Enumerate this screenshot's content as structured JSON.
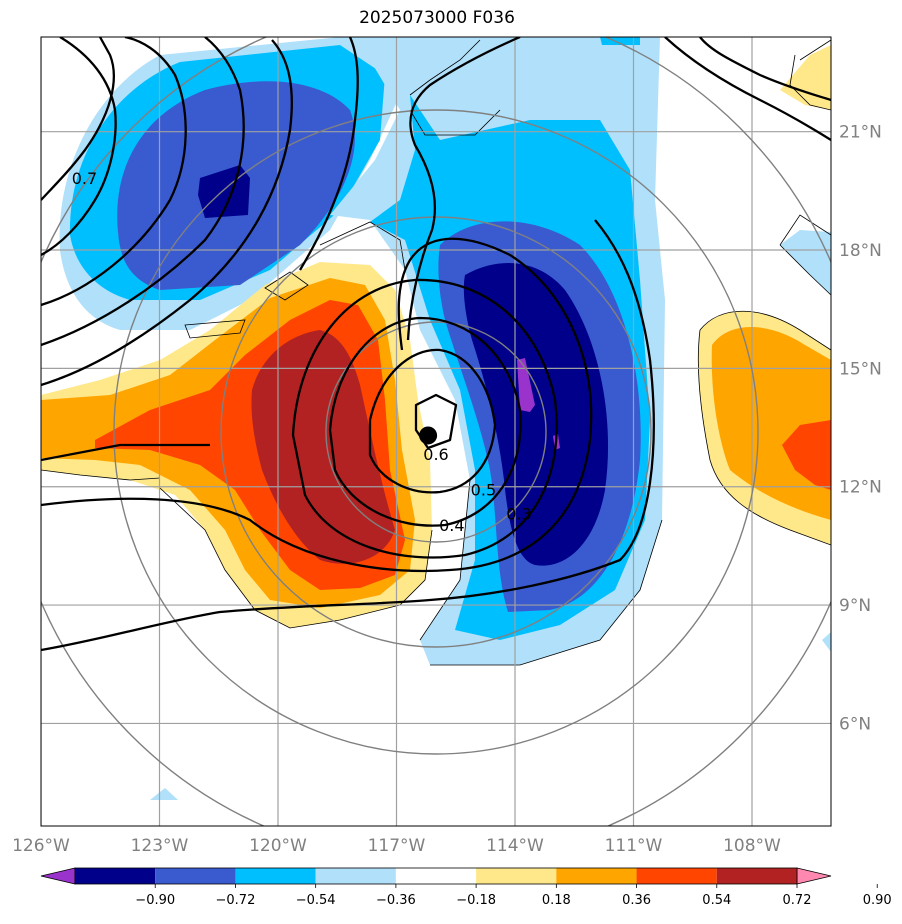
{
  "title": "2025073000 F036",
  "map": {
    "lon_range": [
      -126,
      -106
    ],
    "lat_range": [
      3.4,
      23.4
    ],
    "lon_ticks": [
      -126,
      -123,
      -120,
      -117,
      -114,
      -111,
      -108
    ],
    "lon_tick_labels": [
      "126°W",
      "123°W",
      "120°W",
      "117°W",
      "114°W",
      "111°W",
      "108°W"
    ],
    "lat_ticks": [
      6,
      9,
      12,
      15,
      18,
      21
    ],
    "lat_tick_labels": [
      "6°N",
      "9°N",
      "12°N",
      "15°N",
      "18°N",
      "21°N"
    ],
    "grid": true,
    "center_marker": {
      "lon": -116.2,
      "lat": 13.3
    },
    "range_rings_count": 4
  },
  "contour_labels": [
    {
      "text": "0.7",
      "lon": -124.9,
      "lat": 19.8
    },
    {
      "text": "0.6",
      "lon": -116.0,
      "lat": 12.8
    },
    {
      "text": "0.5",
      "lon": -114.8,
      "lat": 11.9
    },
    {
      "text": "0.4",
      "lon": -115.6,
      "lat": 11.0
    },
    {
      "text": "0.3",
      "lon": -113.9,
      "lat": 11.3
    }
  ],
  "colorbar": {
    "levels": [
      "−0.90",
      "−0.72",
      "−0.54",
      "−0.36",
      "−0.18",
      "0.18",
      "0.36",
      "0.54",
      "0.72",
      "0.90"
    ],
    "colors": [
      "#9933cc",
      "#00008b",
      "#3a5bd0",
      "#00bfff",
      "#b0e0fa",
      "#ffffff",
      "#ffe88a",
      "#ffa500",
      "#ff4500",
      "#b22222",
      "#ff88b0"
    ],
    "extend": "both"
  },
  "colors": {
    "contour": "#000000",
    "gridline": "#a0a0a0",
    "ring": "#808080"
  }
}
